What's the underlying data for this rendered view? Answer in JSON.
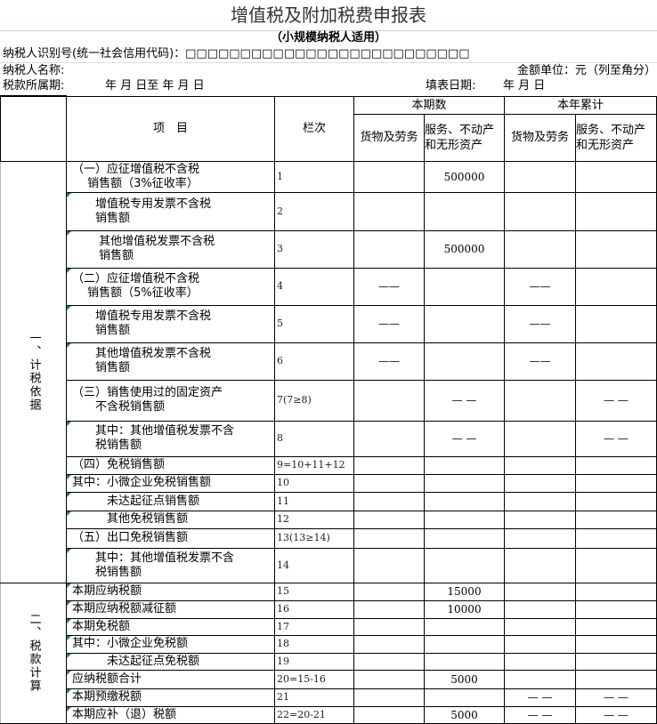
{
  "title": "增值税及附加税费申报表",
  "subtitle": "（小规模纳税人适用）",
  "taxpayer_id_label": "纳税人识别号(统一社会信用代码)：□□□□□□□□□□□□□□□□□□□□□□□□□□",
  "taxpayer_name_label": "纳税人名称:",
  "amount_unit": "金额单位：元（列至角分）",
  "period_label": "税款所属期:",
  "period_value": "年  月  日至        年  月  日",
  "fill_date_label": "填表日期:",
  "fill_date_value": "年  月  日",
  "header": {
    "item": "项　目",
    "code": "栏次",
    "current": "本期数",
    "ytd": "本年累计",
    "goods": "货物及劳务",
    "services": "服务、不动产和无形资产"
  },
  "sections": [
    "一、计税依据",
    "二、税款计算"
  ],
  "rows": [
    {
      "item": "（一）应征增值税不含税\n　 销售额（3%征收率）",
      "code": "1",
      "vals": [
        "",
        "500000",
        "",
        ""
      ]
    },
    {
      "item": "　　增值税专用发票不含税\n　　销售额",
      "code": "2",
      "vals": [
        "",
        "",
        "",
        ""
      ]
    },
    {
      "item": "　　 其他增值税发票不含税\n　　 销售额",
      "code": "3",
      "vals": [
        "",
        "500000",
        "",
        ""
      ]
    },
    {
      "item": "（二）应征增值税不含税\n　 销售额（5%征收率）",
      "code": "4",
      "vals": [
        "——",
        "",
        "——",
        ""
      ]
    },
    {
      "item": "　　增值税专用发票不含税\n　　销售额",
      "code": "5",
      "vals": [
        "——",
        "",
        "——",
        ""
      ]
    },
    {
      "item": "　　其他增值税发票不含税\n　　销售额",
      "code": "6",
      "vals": [
        "——",
        "",
        "——",
        ""
      ]
    },
    {
      "item": "（三）销售使用过的固定资产\n　　不含税销售额",
      "code": "7(7≥8)",
      "vals": [
        "",
        "— —",
        "",
        "— —"
      ]
    },
    {
      "item": "　　其中：其他增值税发票不含\n　　税销售额",
      "code": "8",
      "vals": [
        "",
        "— —",
        "",
        "— —"
      ]
    },
    {
      "item": "（四）免税销售额",
      "code": "9=10+11+12",
      "vals": [
        "",
        "",
        "",
        ""
      ]
    },
    {
      "item": "其中：小微企业免税销售额",
      "code": "10",
      "vals": [
        "",
        "",
        "",
        ""
      ]
    },
    {
      "item": "　　　未达起征点销售额",
      "code": "11",
      "vals": [
        "",
        "",
        "",
        ""
      ]
    },
    {
      "item": "　　　其他免税销售额",
      "code": "12",
      "vals": [
        "",
        "",
        "",
        ""
      ]
    },
    {
      "item": "（五）出口免税销售额",
      "code": "13(13≥14)",
      "vals": [
        "",
        "",
        "",
        ""
      ]
    },
    {
      "item": "　　其中：其他增值税发票不含\n　　税销售额",
      "code": "14",
      "vals": [
        "",
        "",
        "",
        ""
      ]
    },
    {
      "item": "本期应纳税额",
      "code": "15",
      "vals": [
        "",
        "15000",
        "",
        ""
      ]
    },
    {
      "item": "本期应纳税额减征额",
      "code": "16",
      "vals": [
        "",
        "10000",
        "",
        ""
      ]
    },
    {
      "item": "本期免税额",
      "code": "17",
      "vals": [
        "",
        "",
        "",
        ""
      ]
    },
    {
      "item": "其中：小微企业免税额",
      "code": "18",
      "vals": [
        "",
        "",
        "",
        ""
      ]
    },
    {
      "item": "　　　未达起征点免税额",
      "code": "19",
      "vals": [
        "",
        "",
        "",
        ""
      ]
    },
    {
      "item": "应纳税额合计",
      "code": "20=15-16",
      "vals": [
        "",
        "5000",
        "",
        ""
      ]
    },
    {
      "item": "本期预缴税额",
      "code": "21",
      "vals": [
        "",
        "",
        "— —",
        "— —"
      ]
    },
    {
      "item": "本期应补（退）税额",
      "code": "22=20-21",
      "vals": [
        "",
        "5000",
        "— —",
        "— —"
      ]
    }
  ]
}
